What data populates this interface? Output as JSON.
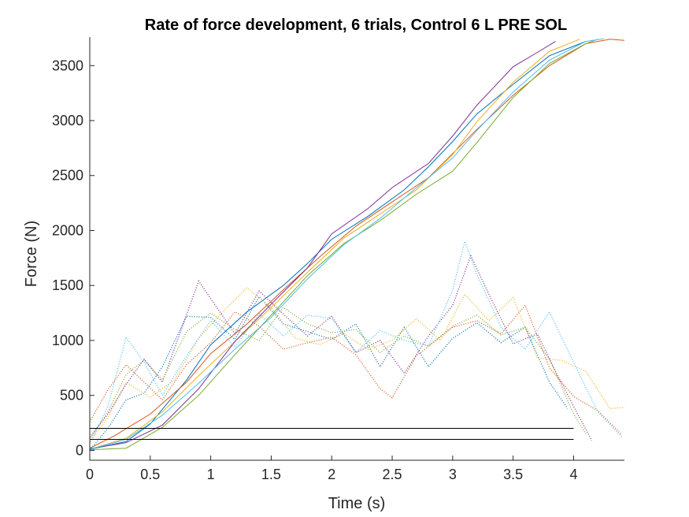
{
  "chart_data": {
    "type": "line",
    "title": "Rate of force development, 6 trials, Control 6 L PRE SOL",
    "xlabel": "Time (s)",
    "ylabel": "Force (N)",
    "xlim": [
      0,
      4.42
    ],
    "ylim": [
      -90,
      3760
    ],
    "xticks": [
      "0",
      "0.5",
      "1",
      "1.5",
      "2",
      "2.5",
      "3",
      "3.5",
      "4"
    ],
    "yticks": [
      "0",
      "500",
      "1000",
      "1500",
      "2000",
      "2500",
      "3000",
      "3500"
    ],
    "grid": false,
    "legend": "none",
    "series": [
      {
        "style": "solid",
        "color": "#0072BD",
        "x": [
          0,
          0.3,
          0.5,
          0.8,
          1.0,
          1.3,
          1.6,
          1.8,
          2.0,
          2.3,
          2.6,
          2.8,
          3.0,
          3.2,
          3.5,
          3.8,
          4.1
        ],
        "y": [
          10,
          80,
          240,
          640,
          960,
          1260,
          1500,
          1700,
          1920,
          2130,
          2370,
          2580,
          2810,
          3060,
          3330,
          3590,
          3720
        ]
      },
      {
        "style": "solid",
        "color": "#D95319",
        "x": [
          0,
          0.2,
          0.5,
          0.8,
          1.0,
          1.3,
          1.6,
          1.9,
          2.2,
          2.5,
          2.8,
          3.0,
          3.2,
          3.5,
          3.8,
          4.1,
          4.3,
          4.42
        ],
        "y": [
          20,
          130,
          330,
          620,
          880,
          1150,
          1460,
          1760,
          2040,
          2260,
          2480,
          2700,
          2920,
          3230,
          3500,
          3700,
          3740,
          3730
        ]
      },
      {
        "style": "solid",
        "color": "#EDB120",
        "x": [
          0,
          0.3,
          0.6,
          0.9,
          1.2,
          1.5,
          1.8,
          2.1,
          2.4,
          2.7,
          3.0,
          3.2,
          3.5,
          3.8,
          4.05
        ],
        "y": [
          10,
          110,
          350,
          680,
          990,
          1300,
          1620,
          1930,
          2150,
          2370,
          2690,
          2990,
          3350,
          3630,
          3740
        ]
      },
      {
        "style": "solid",
        "color": "#7E2F8E",
        "x": [
          0,
          0.3,
          0.6,
          0.9,
          1.2,
          1.5,
          1.8,
          2.0,
          2.3,
          2.5,
          2.8,
          3.0,
          3.2,
          3.5,
          3.7,
          3.85
        ],
        "y": [
          15,
          70,
          230,
          560,
          990,
          1330,
          1660,
          1970,
          2200,
          2390,
          2610,
          2860,
          3140,
          3490,
          3620,
          3720
        ]
      },
      {
        "style": "solid",
        "color": "#77AC30",
        "x": [
          0,
          0.3,
          0.6,
          0.9,
          1.2,
          1.5,
          1.8,
          2.1,
          2.4,
          2.7,
          3.0,
          3.2,
          3.5,
          3.8,
          4.1,
          4.2
        ],
        "y": [
          5,
          20,
          210,
          500,
          870,
          1230,
          1590,
          1880,
          2090,
          2330,
          2540,
          2800,
          3210,
          3520,
          3700,
          3740
        ]
      },
      {
        "style": "solid",
        "color": "#4DBEEE",
        "x": [
          0,
          0.3,
          0.6,
          0.9,
          1.2,
          1.5,
          1.8,
          2.1,
          2.4,
          2.7,
          3.0,
          3.2,
          3.5,
          3.8,
          4.1,
          4.25
        ],
        "y": [
          10,
          100,
          320,
          610,
          920,
          1210,
          1560,
          1870,
          2110,
          2390,
          2660,
          2910,
          3260,
          3550,
          3720,
          3745
        ]
      },
      {
        "style": "dotted",
        "color": "#0072BD",
        "x": [
          0,
          0.15,
          0.3,
          0.45,
          0.6,
          0.8,
          1.0,
          1.2,
          1.4,
          1.6,
          1.8,
          2.0,
          2.2,
          2.4,
          2.6,
          2.8,
          3.0,
          3.2,
          3.4,
          3.6,
          3.8,
          3.95
        ],
        "y": [
          0,
          200,
          460,
          520,
          760,
          1220,
          1210,
          1010,
          1400,
          1150,
          1080,
          1010,
          1150,
          760,
          1120,
          760,
          1020,
          1160,
          980,
          1120,
          620,
          380
        ]
      },
      {
        "style": "dotted",
        "color": "#D95319",
        "x": [
          0,
          0.15,
          0.3,
          0.45,
          0.6,
          0.8,
          1.0,
          1.2,
          1.4,
          1.6,
          1.8,
          2.0,
          2.2,
          2.4,
          2.5,
          2.7,
          3.0,
          3.2,
          3.4,
          3.6,
          3.8,
          4.0,
          4.2,
          4.4
        ],
        "y": [
          260,
          550,
          780,
          620,
          460,
          780,
          980,
          1260,
          1130,
          920,
          980,
          1030,
          870,
          560,
          480,
          860,
          1120,
          1180,
          1060,
          1320,
          750,
          490,
          360,
          140
        ]
      },
      {
        "style": "dotted",
        "color": "#EDB120",
        "x": [
          0,
          0.15,
          0.3,
          0.5,
          0.7,
          0.9,
          1.1,
          1.3,
          1.5,
          1.7,
          1.9,
          2.1,
          2.3,
          2.5,
          2.7,
          2.9,
          3.1,
          3.3,
          3.5,
          3.7,
          3.9,
          4.1,
          4.3,
          4.42
        ],
        "y": [
          80,
          300,
          620,
          480,
          640,
          1020,
          1260,
          1480,
          1300,
          1020,
          960,
          1060,
          920,
          1000,
          1200,
          1000,
          1420,
          1180,
          1390,
          840,
          820,
          720,
          380,
          390
        ]
      },
      {
        "style": "dotted",
        "color": "#7E2F8E",
        "x": [
          0,
          0.15,
          0.3,
          0.45,
          0.6,
          0.75,
          0.9,
          1.05,
          1.2,
          1.4,
          1.6,
          1.8,
          2.0,
          2.2,
          2.4,
          2.6,
          2.8,
          3.0,
          3.15,
          3.3,
          3.5,
          3.7,
          3.85,
          4.0,
          4.15
        ],
        "y": [
          120,
          330,
          600,
          830,
          620,
          1080,
          1540,
          1300,
          1060,
          1450,
          1240,
          1040,
          1220,
          890,
          1000,
          700,
          1040,
          1320,
          1770,
          1420,
          970,
          1060,
          720,
          400,
          90
        ]
      },
      {
        "style": "dotted",
        "color": "#77AC30",
        "x": [
          0,
          0.15,
          0.3,
          0.45,
          0.6,
          0.8,
          1.0,
          1.2,
          1.4,
          1.6,
          1.8,
          2.0,
          2.2,
          2.4,
          2.6,
          2.8,
          3.0,
          3.2,
          3.4,
          3.6,
          3.8,
          4.0,
          4.1
        ],
        "y": [
          100,
          350,
          690,
          820,
          640,
          1080,
          1250,
          1100,
          1000,
          1300,
          1150,
          1070,
          1100,
          890,
          1040,
          950,
          1130,
          1230,
          1050,
          1120,
          830,
          330,
          150
        ]
      },
      {
        "style": "dotted",
        "color": "#4DBEEE",
        "x": [
          0,
          0.15,
          0.3,
          0.45,
          0.6,
          0.8,
          1.0,
          1.2,
          1.4,
          1.6,
          1.8,
          2.0,
          2.2,
          2.4,
          2.6,
          2.8,
          3.0,
          3.1,
          3.2,
          3.4,
          3.6,
          3.8,
          4.0,
          4.2,
          4.4
        ],
        "y": [
          60,
          400,
          1030,
          800,
          500,
          860,
          1180,
          940,
          1240,
          1040,
          1230,
          1200,
          890,
          1090,
          1000,
          950,
          1460,
          1900,
          1600,
          1120,
          920,
          1260,
          800,
          350,
          120
        ]
      }
    ],
    "reference_lines": [
      {
        "y": 200,
        "x": [
          0,
          4.0
        ],
        "color": "#000000"
      },
      {
        "y": 100,
        "x": [
          0,
          4.0
        ],
        "color": "#000000"
      }
    ]
  }
}
